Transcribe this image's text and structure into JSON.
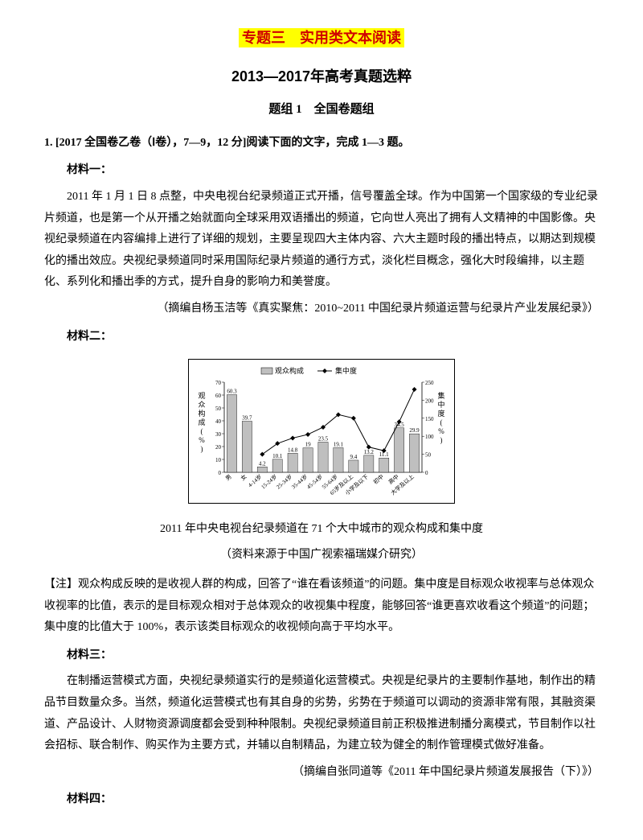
{
  "titles": {
    "main": "专题三　实用类文本阅读",
    "sub": "2013—2017年高考真题选粹",
    "group": "题组 1　全国卷题组"
  },
  "q1": {
    "head": "1. [2017 全国卷乙卷（Ⅰ卷），7—9，12 分]阅读下面的文字，完成 1—3 题。",
    "m1_label": "材料一：",
    "m1_p1": "2011 年 1 月 1 日 8 点整，中央电视台纪录频道正式开播，信号覆盖全球。作为中国第一个国家级的专业纪录片频道，也是第一个从开播之始就面向全球采用双语播出的频道，它向世人亮出了拥有人文精神的中国影像。央视纪录频道在内容编排上进行了详细的规划，主要呈现四大主体内容、六大主题时段的播出特点，以期达到规模化的播出效应。央视纪录频道同时采用国际纪录片频道的通行方式，淡化栏目概念，强化大时段编排，以主题化、系列化和播出季的方式，提升自身的影响力和美誉度。",
    "m1_src": "（摘编自杨玉洁等《真实聚焦：2010~2011 中国纪录片频道运营与纪录片产业发展纪录》）",
    "m2_label": "材料二：",
    "chart": {
      "legend_bar": "观众构成",
      "legend_line": "集中度",
      "y1_label": "观众构成(%)",
      "y2_label": "集中度(%)",
      "y1_max": 70,
      "y1_step": 10,
      "y2_max": 250,
      "y2_step": 50,
      "categories": [
        "男",
        "女",
        "4-14岁",
        "15-24岁",
        "25-34岁",
        "35-44岁",
        "45-54岁",
        "55-64岁",
        "65岁及以上",
        "小学及以下",
        "初中",
        "高中",
        "大学及以上"
      ],
      "bar_values": [
        60.3,
        39.7,
        4.2,
        10.1,
        14.8,
        19.0,
        23.5,
        19.1,
        9.4,
        13.2,
        11.1,
        34.5,
        29.9
      ],
      "line_values": [
        null,
        null,
        50,
        80,
        95,
        105,
        125,
        160,
        150,
        70,
        60,
        140,
        230
      ],
      "show_line_starts_at": 2,
      "bar_color": "#bfbfbf",
      "line_color": "#000000",
      "bg": "#ffffff"
    },
    "chart_caption": "2011 年中央电视台纪录频道在 71 个大中城市的观众构成和集中度",
    "chart_sub": "（资料来源于中国广视索福瑞媒介研究）",
    "note": "【注】观众构成反映的是收视人群的构成，回答了“谁在看该频道”的问题。集中度是目标观众收视率与总体观众收视率的比值，表示的是目标观众相对于总体观众的收视集中程度，能够回答“谁更喜欢收看这个频道”的问题；集中度的比值大于 100%，表示该类目标观众的收视倾向高于平均水平。",
    "m3_label": "材料三：",
    "m3_p1": "在制播运营模式方面，央视纪录频道实行的是频道化运营模式。央视是纪录片的主要制作基地，制作出的精品节目数量众多。当然，频道化运营模式也有其自身的劣势，劣势在于频道可以调动的资源非常有限，其融资渠道、产品设计、人财物资源调度都会受到种种限制。央视纪录频道目前正积极推进制播分离模式，节目制作以社会招标、联合制作、购买作为主要方式，并辅以自制精品，为建立较为健全的制作管理模式做好准备。",
    "m3_src": "（摘编自张同道等《2011 年中国纪录片频道发展报告（下）》）",
    "m4_label": "材料四："
  }
}
